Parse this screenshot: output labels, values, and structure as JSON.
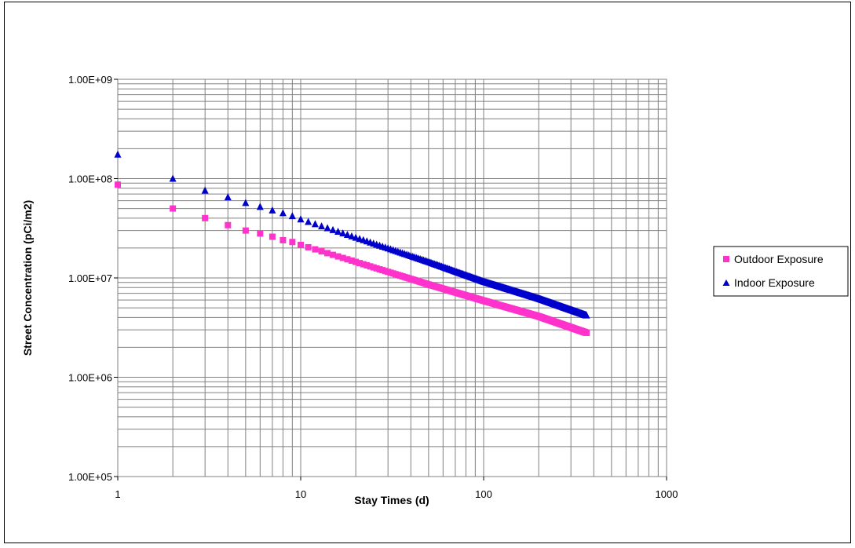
{
  "chart_data": {
    "type": "scatter",
    "title": "",
    "xlabel": "Stay Times (d)",
    "ylabel": "Street Concentration (pCi/m2)",
    "x_scale": "log",
    "y_scale": "log",
    "xlim": [
      1,
      1000
    ],
    "ylim": [
      100000,
      1000000000
    ],
    "x_ticks": [
      "1",
      "10",
      "100",
      "1000"
    ],
    "y_ticks": [
      "1.00E+05",
      "1.00E+06",
      "1.00E+07",
      "1.00E+08",
      "1.00E+09"
    ],
    "grid": true,
    "legend_position": "right",
    "x_range": [
      1,
      365
    ],
    "series": [
      {
        "name": "Outdoor Exposure",
        "marker": "square",
        "color": "#ff33cc",
        "x": [
          1,
          2,
          3,
          4,
          5,
          6,
          7,
          8,
          9,
          10,
          20,
          50,
          100,
          200,
          365
        ],
        "y": [
          87000000,
          50000000,
          40000000,
          34000000,
          30000000,
          28000000,
          26000000,
          24000000,
          23000000,
          21500000,
          14500000,
          8600000,
          5900000,
          4100000,
          2800000
        ]
      },
      {
        "name": "Indoor Exposure",
        "marker": "triangle",
        "color": "#0000cc",
        "x": [
          1,
          2,
          3,
          4,
          5,
          6,
          7,
          8,
          9,
          10,
          20,
          50,
          100,
          200,
          365
        ],
        "y": [
          175000000,
          100000000,
          76000000,
          65000000,
          57000000,
          52000000,
          48000000,
          45000000,
          42000000,
          39000000,
          25500000,
          14500000,
          9200000,
          6200000,
          4200000
        ]
      }
    ]
  }
}
